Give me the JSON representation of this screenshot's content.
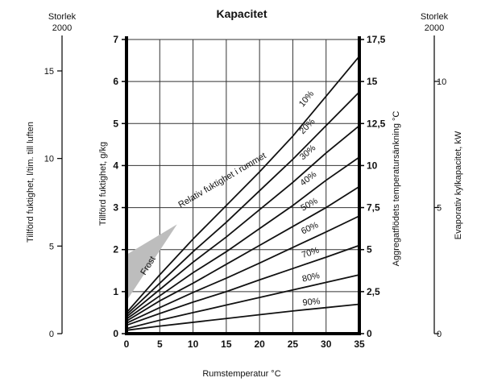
{
  "chart_data": {
    "type": "line",
    "title": "Kapacitet",
    "xlabel": "Rumstemperatur °C",
    "x_ticks": [
      "0",
      "5",
      "10",
      "15",
      "20",
      "25",
      "30",
      "35"
    ],
    "xlim": [
      0,
      35
    ],
    "ylabel_left": "Tillförd fuktighet, g/kg",
    "ylim": [
      0,
      7
    ],
    "y_ticks_left": [
      "0",
      "1",
      "2",
      "3",
      "4",
      "5",
      "6",
      "7"
    ],
    "ylabel_right": "Aggregatflödets temperatursänkning °C",
    "ylim_right": [
      0,
      17.5
    ],
    "y_ticks_right": [
      "0",
      "2,5",
      "5",
      "7,5",
      "10",
      "12,5",
      "15",
      "17,5"
    ],
    "aux_axis_left": {
      "header_line1": "Storlek",
      "header_line2": "2000",
      "label": "Tillförd fuktighet, l/tim. till luften",
      "ticks": [
        "0",
        "5",
        "10",
        "15"
      ],
      "range": [
        0,
        15
      ]
    },
    "aux_axis_right": {
      "header_line1": "Storlek",
      "header_line2": "2000",
      "label": "Evaporativ kylkapacitet, kW",
      "ticks": [
        "0",
        "5",
        "10"
      ],
      "range": [
        0,
        10
      ]
    },
    "curve_group_label": "Relativ fuktighet i rummet",
    "frost_label": "Frost",
    "frost_region": [
      [
        0,
        0.78
      ],
      [
        0,
        1.88
      ],
      [
        7.6,
        2.6
      ]
    ],
    "grid": true,
    "series": [
      {
        "name": "10%",
        "x": [
          0,
          5,
          10,
          15,
          20,
          25,
          30,
          35
        ],
        "y": [
          0.5,
          1.4,
          2.25,
          3.05,
          3.85,
          4.7,
          5.65,
          6.6
        ]
      },
      {
        "name": "20%",
        "x": [
          0,
          5,
          10,
          15,
          20,
          25,
          30,
          35
        ],
        "y": [
          0.45,
          1.2,
          1.95,
          2.65,
          3.4,
          4.15,
          4.95,
          5.75
        ]
      },
      {
        "name": "30%",
        "x": [
          0,
          5,
          10,
          15,
          20,
          25,
          30,
          35
        ],
        "y": [
          0.4,
          1.05,
          1.7,
          2.3,
          2.95,
          3.6,
          4.3,
          4.95
        ]
      },
      {
        "name": "40%",
        "x": [
          0,
          5,
          10,
          15,
          20,
          25,
          30,
          35
        ],
        "y": [
          0.35,
          0.9,
          1.45,
          1.95,
          2.5,
          3.05,
          3.65,
          4.2
        ]
      },
      {
        "name": "50%",
        "x": [
          0,
          5,
          10,
          15,
          20,
          25,
          30,
          35
        ],
        "y": [
          0.3,
          0.78,
          1.2,
          1.65,
          2.1,
          2.55,
          3.0,
          3.5
        ]
      },
      {
        "name": "60%",
        "x": [
          0,
          5,
          10,
          15,
          20,
          25,
          30,
          35
        ],
        "y": [
          0.25,
          0.62,
          0.98,
          1.32,
          1.68,
          2.05,
          2.42,
          2.8
        ]
      },
      {
        "name": "70%",
        "x": [
          0,
          5,
          10,
          15,
          20,
          25,
          30,
          35
        ],
        "y": [
          0.2,
          0.48,
          0.75,
          1.0,
          1.28,
          1.55,
          1.82,
          2.1
        ]
      },
      {
        "name": "80%",
        "x": [
          0,
          5,
          10,
          15,
          20,
          25,
          30,
          35
        ],
        "y": [
          0.12,
          0.32,
          0.5,
          0.68,
          0.86,
          1.04,
          1.22,
          1.4
        ]
      },
      {
        "name": "90%",
        "x": [
          0,
          5,
          10,
          15,
          20,
          25,
          30,
          35
        ],
        "y": [
          0.08,
          0.18,
          0.27,
          0.36,
          0.45,
          0.54,
          0.62,
          0.7
        ]
      }
    ]
  }
}
